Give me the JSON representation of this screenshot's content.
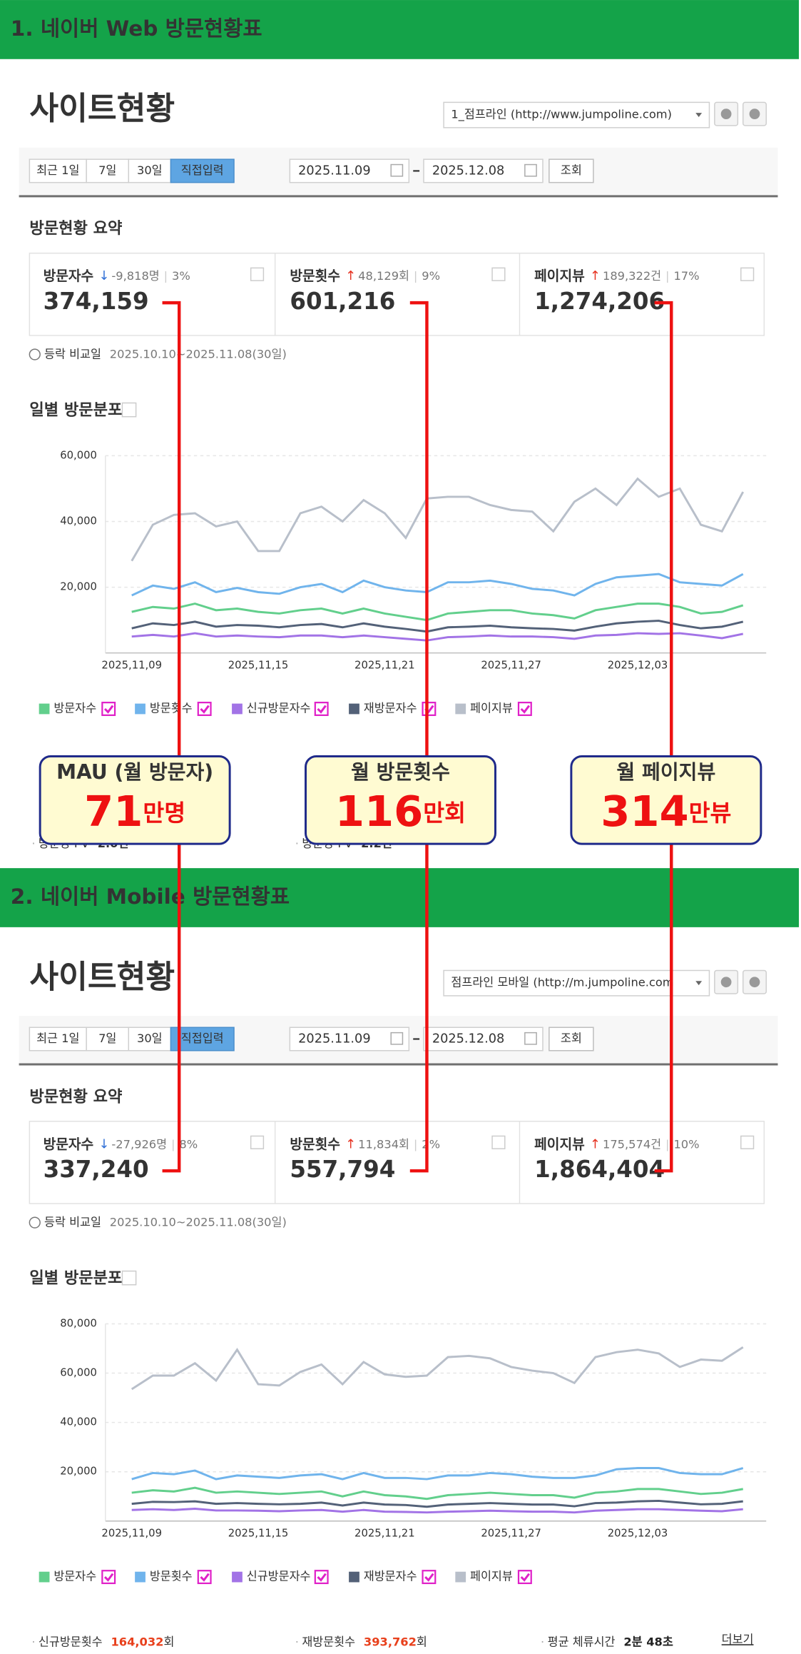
{
  "sections": [
    {
      "heading": "1. 네이버 Web 방문현황표",
      "site_title": "사이트현황",
      "site_select": "1_점프라인 (http://www.jumpoline.com)",
      "tabs": [
        "최근 1일",
        "7일",
        "30일",
        "직접입력"
      ],
      "date_from": "2025.11.09",
      "date_to": "2025.12.08",
      "search_button": "조회",
      "summary_title": "방문현황 요약",
      "cards": [
        {
          "label": "방문자수",
          "change": "-9,818명",
          "percent": "3%",
          "value": "374,159"
        },
        {
          "label": "방문횟수",
          "change": "48,129회",
          "percent": "9%",
          "value": "601,216"
        },
        {
          "label": "페이지뷰",
          "change": "189,322건",
          "percent": "17%",
          "value": "1,274,206"
        }
      ],
      "compare_label": "등락 비교일",
      "compare_period": "2025.10.10~2025.11.08(30일)",
      "chart_title": "일별 방문분포",
      "footer": [
        {
          "label": "방문당 PV",
          "value": "2.0건",
          "color": "#333333"
        },
        {
          "label": "방문당 PV",
          "value": "2.2건",
          "color": "#333333"
        }
      ]
    },
    {
      "heading": "2. 네이버 Mobile 방문현황표",
      "site_title": "사이트현황",
      "site_select": "점프라인 모바일 (http://m.jumpoline.com",
      "tabs": [
        "최근 1일",
        "7일",
        "30일",
        "직접입력"
      ],
      "date_from": "2025.11.09",
      "date_to": "2025.12.08",
      "search_button": "조회",
      "summary_title": "방문현황 요약",
      "cards": [
        {
          "label": "방문자수",
          "change": "-27,926명",
          "percent": "8%",
          "value": "337,240"
        },
        {
          "label": "방문횟수",
          "change": "11,834회",
          "percent": "2%",
          "value": "557,794"
        },
        {
          "label": "페이지뷰",
          "change": "175,574건",
          "percent": "10%",
          "value": "1,864,404"
        }
      ],
      "compare_label": "등락 비교일",
      "compare_period": "2025.10.10~2025.11.08(30일)",
      "chart_title": "일별 방문분포",
      "footer": [
        {
          "label": "신규방문횟수",
          "value": "164,032",
          "unit": "회",
          "color": "#e8401c"
        },
        {
          "label": "재방문횟수",
          "value": "393,762",
          "unit": "회",
          "color": "#e8401c"
        },
        {
          "label": "평균 체류시간",
          "value": "2분 48초",
          "color": "#222222"
        }
      ],
      "more_link": "더보기"
    }
  ],
  "callouts": [
    {
      "title": "MAU (월 방문자)",
      "number": "71",
      "unit": "만명"
    },
    {
      "title": "월 방문횟수",
      "number": "116",
      "unit": "만회"
    },
    {
      "title": "월 페이지뷰",
      "number": "314",
      "unit": "만뷰"
    }
  ],
  "chart_data": [
    {
      "type": "line",
      "grid": true,
      "categories": [
        "2025,11,09",
        null,
        null,
        null,
        null,
        null,
        "2025,11,15",
        null,
        null,
        null,
        null,
        null,
        "2025,11,21",
        null,
        null,
        null,
        null,
        null,
        "2025,11,27",
        null,
        null,
        null,
        null,
        null,
        "2025,12,03",
        null,
        null,
        null,
        null,
        null
      ],
      "ylim": [
        0,
        60000
      ],
      "yticks": [
        {
          "value": 20000,
          "label": "20,000"
        },
        {
          "value": 40000,
          "label": "40,000"
        },
        {
          "value": 60000,
          "label": "60,000"
        }
      ],
      "series": [
        {
          "name": "방문자수",
          "color": "#62cf8c",
          "values": [
            12500,
            14000,
            13500,
            15000,
            13000,
            13500,
            12500,
            12000,
            13000,
            13500,
            12000,
            13500,
            12000,
            11000,
            10000,
            12000,
            12500,
            13000,
            13000,
            12000,
            11500,
            10500,
            13000,
            14000,
            15000,
            15000,
            14000,
            12000,
            12500,
            14500
          ]
        },
        {
          "name": "방문횟수",
          "color": "#70b4ec",
          "values": [
            17500,
            20500,
            19500,
            21500,
            18500,
            19800,
            18500,
            18000,
            20000,
            21000,
            18500,
            22000,
            20000,
            19000,
            18500,
            21500,
            21500,
            22000,
            21000,
            19500,
            19000,
            17500,
            21000,
            23000,
            23500,
            24000,
            21500,
            21000,
            20500,
            24000
          ]
        },
        {
          "name": "신규방문자수",
          "color": "#a273e6",
          "values": [
            5000,
            5500,
            5000,
            6000,
            5000,
            5300,
            5000,
            4800,
            5300,
            5300,
            4800,
            5300,
            4800,
            4300,
            3800,
            4800,
            5000,
            5300,
            5000,
            5000,
            4800,
            4300,
            5300,
            5500,
            6000,
            5800,
            6000,
            5300,
            4500,
            5800
          ]
        },
        {
          "name": "재방문자수",
          "color": "#536178",
          "values": [
            7500,
            9000,
            8500,
            9500,
            8000,
            8500,
            8300,
            7800,
            8500,
            8800,
            7800,
            9000,
            8000,
            7300,
            6500,
            7800,
            8000,
            8300,
            7800,
            7500,
            7300,
            6800,
            8000,
            9000,
            9500,
            9800,
            8500,
            7500,
            8000,
            9500
          ]
        },
        {
          "name": "페이지뷰",
          "color": "#b8bfca",
          "values": [
            28000,
            39000,
            42000,
            42500,
            38500,
            40000,
            31000,
            31000,
            42500,
            44500,
            40000,
            46500,
            42500,
            35000,
            47000,
            47500,
            47500,
            45000,
            43500,
            43000,
            37000,
            46000,
            50000,
            45000,
            53000,
            47500,
            50000,
            39000,
            37000,
            49000
          ]
        }
      ]
    },
    {
      "type": "line",
      "grid": true,
      "categories": [
        "2025,11,09",
        null,
        null,
        null,
        null,
        null,
        "2025,11,15",
        null,
        null,
        null,
        null,
        null,
        "2025,11,21",
        null,
        null,
        null,
        null,
        null,
        "2025,11,27",
        null,
        null,
        null,
        null,
        null,
        "2025,12,03",
        null,
        null,
        null,
        null,
        null
      ],
      "ylim": [
        0,
        80000
      ],
      "yticks": [
        {
          "value": 20000,
          "label": "20,000"
        },
        {
          "value": 40000,
          "label": "40,000"
        },
        {
          "value": 60000,
          "label": "60,000"
        },
        {
          "value": 80000,
          "label": "80,000"
        }
      ],
      "series": [
        {
          "name": "방문자수",
          "color": "#62cf8c",
          "values": [
            11500,
            12500,
            12000,
            13500,
            11500,
            12000,
            11500,
            11000,
            11500,
            12000,
            10000,
            12000,
            10500,
            10000,
            9000,
            10500,
            11000,
            11500,
            11000,
            10500,
            10500,
            9500,
            11500,
            12000,
            13000,
            13000,
            12000,
            11000,
            11500,
            13000
          ]
        },
        {
          "name": "방문횟수",
          "color": "#70b4ec",
          "values": [
            17000,
            19500,
            19000,
            20500,
            17000,
            18500,
            18000,
            17500,
            18500,
            19000,
            17000,
            19500,
            17500,
            17500,
            17000,
            18500,
            18500,
            19500,
            19000,
            18000,
            17500,
            17500,
            18500,
            21000,
            21500,
            21500,
            19500,
            19000,
            19000,
            21500
          ]
        },
        {
          "name": "신규방문자수",
          "color": "#a273e6",
          "values": [
            4500,
            4800,
            4500,
            5000,
            4300,
            4300,
            4200,
            4000,
            4300,
            4500,
            3800,
            4500,
            3800,
            3700,
            3500,
            3800,
            4000,
            4200,
            4000,
            3800,
            3800,
            3500,
            4200,
            4500,
            4800,
            4800,
            4500,
            4200,
            4000,
            4800
          ]
        },
        {
          "name": "재방문자수",
          "color": "#536178",
          "values": [
            7000,
            7800,
            7700,
            8000,
            7000,
            7300,
            7000,
            6800,
            7000,
            7500,
            6300,
            7500,
            6700,
            6500,
            5800,
            6700,
            7000,
            7300,
            7000,
            6700,
            6700,
            6000,
            7300,
            7500,
            8000,
            8200,
            7500,
            6800,
            7000,
            8000
          ]
        },
        {
          "name": "페이지뷰",
          "color": "#b8bfca",
          "values": [
            53500,
            59000,
            59000,
            64000,
            57000,
            69500,
            55500,
            55000,
            60500,
            63500,
            55500,
            64500,
            59500,
            58500,
            59000,
            66500,
            67000,
            66000,
            62500,
            61000,
            60000,
            56000,
            66500,
            68500,
            69500,
            68000,
            62500,
            65500,
            65000,
            70500
          ]
        }
      ]
    }
  ]
}
